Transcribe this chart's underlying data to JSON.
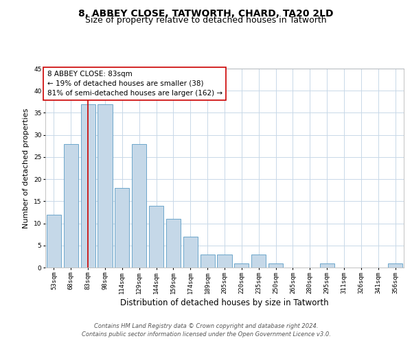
{
  "title": "8, ABBEY CLOSE, TATWORTH, CHARD, TA20 2LD",
  "subtitle": "Size of property relative to detached houses in Tatworth",
  "xlabel": "Distribution of detached houses by size in Tatworth",
  "ylabel": "Number of detached properties",
  "categories": [
    "53sqm",
    "68sqm",
    "83sqm",
    "98sqm",
    "114sqm",
    "129sqm",
    "144sqm",
    "159sqm",
    "174sqm",
    "189sqm",
    "205sqm",
    "220sqm",
    "235sqm",
    "250sqm",
    "265sqm",
    "280sqm",
    "295sqm",
    "311sqm",
    "326sqm",
    "341sqm",
    "356sqm"
  ],
  "values": [
    12,
    28,
    37,
    37,
    18,
    28,
    14,
    11,
    7,
    3,
    3,
    1,
    3,
    1,
    0,
    0,
    1,
    0,
    0,
    0,
    1
  ],
  "bar_color": "#c5d8e8",
  "bar_edge_color": "#5a9cc5",
  "vline_x": 2,
  "vline_color": "#cc0000",
  "annotation_text": "8 ABBEY CLOSE: 83sqm\n← 19% of detached houses are smaller (38)\n81% of semi-detached houses are larger (162) →",
  "annotation_box_color": "#ffffff",
  "annotation_box_edge": "#cc0000",
  "ylim": [
    0,
    45
  ],
  "yticks": [
    0,
    5,
    10,
    15,
    20,
    25,
    30,
    35,
    40,
    45
  ],
  "background_color": "#ffffff",
  "grid_color": "#c8d8e8",
  "footer_line1": "Contains HM Land Registry data © Crown copyright and database right 2024.",
  "footer_line2": "Contains public sector information licensed under the Open Government Licence v3.0.",
  "title_fontsize": 10,
  "subtitle_fontsize": 9,
  "xlabel_fontsize": 8.5,
  "ylabel_fontsize": 8,
  "tick_fontsize": 6.5,
  "annotation_fontsize": 7.5,
  "footer_fontsize": 6
}
